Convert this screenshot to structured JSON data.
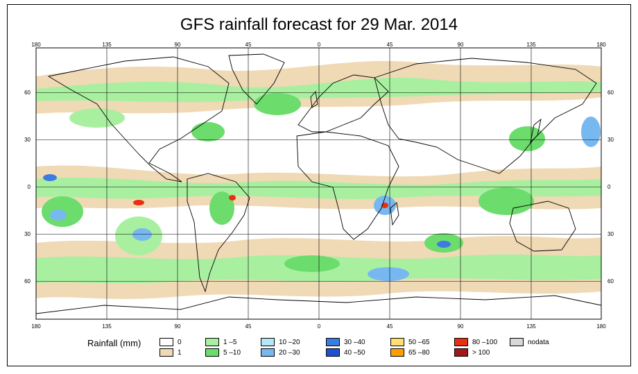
{
  "title": "GFS rainfall forecast for 29 Mar. 2014",
  "lon_labels": [
    "180",
    "135",
    "90",
    "45",
    "0",
    "45",
    "90",
    "135",
    "180"
  ],
  "lat_labels": [
    "60",
    "30",
    "0",
    "30",
    "60"
  ],
  "legend": {
    "title": "Rainfall (mm)",
    "items": [
      {
        "label": "0",
        "color": "#ffffff"
      },
      {
        "label": "1",
        "color": "#f0d9b5"
      },
      {
        "label": "1 –5",
        "color": "#a8f0a0"
      },
      {
        "label": "5 –10",
        "color": "#6cdc6c"
      },
      {
        "label": "10 –20",
        "color": "#b4e8f8"
      },
      {
        "label": "20 –30",
        "color": "#78b8f0"
      },
      {
        "label": "30 –40",
        "color": "#3c7ce0"
      },
      {
        "label": "40 –50",
        "color": "#2050d0"
      },
      {
        "label": "50 –65",
        "color": "#ffe070"
      },
      {
        "label": "65 –80",
        "color": "#ffa000"
      },
      {
        "label": "80 –100",
        "color": "#e83010"
      },
      {
        "label": "> 100",
        "color": "#a01818"
      },
      {
        "label": "nodata",
        "color": "#d8d8d8"
      }
    ]
  }
}
